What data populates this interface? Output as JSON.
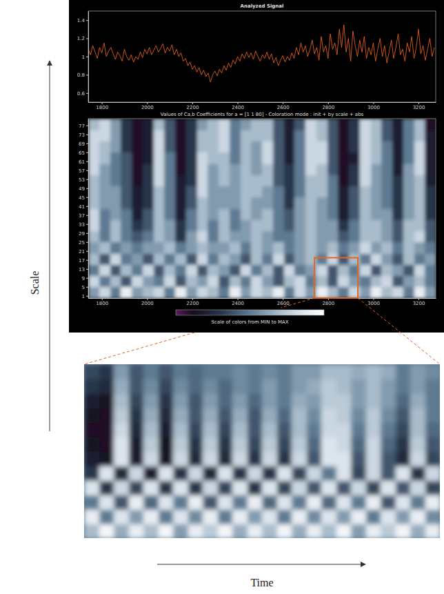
{
  "chart_data": [
    {
      "type": "line",
      "title": "Analyzed Signal",
      "color": "#ff6a1a",
      "x": [
        1740,
        1750,
        1760,
        1770,
        1780,
        1790,
        1800,
        1810,
        1820,
        1830,
        1840,
        1850,
        1860,
        1870,
        1880,
        1890,
        1900,
        1910,
        1920,
        1930,
        1940,
        1950,
        1960,
        1970,
        1980,
        1990,
        2000,
        2010,
        2020,
        2030,
        2040,
        2050,
        2060,
        2070,
        2080,
        2090,
        2100,
        2110,
        2120,
        2130,
        2140,
        2150,
        2160,
        2170,
        2180,
        2190,
        2200,
        2210,
        2220,
        2230,
        2240,
        2250,
        2260,
        2270,
        2280,
        2290,
        2300,
        2310,
        2320,
        2330,
        2340,
        2350,
        2360,
        2370,
        2380,
        2390,
        2400,
        2410,
        2420,
        2430,
        2440,
        2450,
        2460,
        2470,
        2480,
        2490,
        2500,
        2510,
        2520,
        2530,
        2540,
        2550,
        2560,
        2570,
        2580,
        2590,
        2600,
        2610,
        2620,
        2630,
        2640,
        2650,
        2660,
        2670,
        2680,
        2690,
        2700,
        2710,
        2720,
        2730,
        2740,
        2750,
        2760,
        2770,
        2780,
        2790,
        2800,
        2810,
        2820,
        2830,
        2840,
        2850,
        2860,
        2870,
        2880,
        2890,
        2900,
        2910,
        2920,
        2930,
        2940,
        2950,
        2960,
        2970,
        2980,
        2990,
        3000,
        3010,
        3020,
        3030,
        3040,
        3050,
        3060,
        3070,
        3080,
        3090,
        3100,
        3110,
        3120,
        3130,
        3140,
        3150,
        3160,
        3170,
        3180,
        3190,
        3200,
        3210,
        3220,
        3230,
        3240,
        3250,
        3260,
        3270
      ],
      "values": [
        1.08,
        1.02,
        1.12,
        1.05,
        0.98,
        1.1,
        1.04,
        1.15,
        1.0,
        1.06,
        1.1,
        1.03,
        0.97,
        1.05,
        1.01,
        0.95,
        1.08,
        1.0,
        0.96,
        1.02,
        0.94,
        1.0,
        0.97,
        1.05,
        0.99,
        1.08,
        1.03,
        1.1,
        1.02,
        1.07,
        1.12,
        1.05,
        1.09,
        1.14,
        1.04,
        1.1,
        1.06,
        1.13,
        1.02,
        1.08,
        1.0,
        1.04,
        0.95,
        0.98,
        0.9,
        0.94,
        0.86,
        0.9,
        0.83,
        0.88,
        0.8,
        0.85,
        0.78,
        0.82,
        0.72,
        0.8,
        0.84,
        0.79,
        0.86,
        0.82,
        0.9,
        0.85,
        0.93,
        0.88,
        0.96,
        0.92,
        1.0,
        0.95,
        1.03,
        0.98,
        1.05,
        0.99,
        1.04,
        0.97,
        1.06,
        1.0,
        0.95,
        1.02,
        0.98,
        1.05,
        0.97,
        1.03,
        0.93,
        0.99,
        0.9,
        0.96,
        1.01,
        0.94,
        1.0,
        0.96,
        1.04,
        0.98,
        1.1,
        1.02,
        1.15,
        1.05,
        1.12,
        1.0,
        1.08,
        1.18,
        1.03,
        1.1,
        0.96,
        1.22,
        1.05,
        1.12,
        0.98,
        1.25,
        1.08,
        1.15,
        1.02,
        1.3,
        1.1,
        1.35,
        1.05,
        1.2,
        0.95,
        1.28,
        1.12,
        1.0,
        1.18,
        1.05,
        1.22,
        0.98,
        1.1,
        1.02,
        1.15,
        0.95,
        1.08,
        1.2,
        1.0,
        1.12,
        0.93,
        1.05,
        1.18,
        0.98,
        1.1,
        1.25,
        1.02,
        1.08,
        0.95,
        1.15,
        1.05,
        1.22,
        0.98,
        1.1,
        1.3,
        1.03,
        1.12,
        0.96,
        1.08,
        1.2,
        1.0,
        1.1
      ],
      "xlim": [
        1740,
        3276
      ],
      "xticks": [
        1800,
        2000,
        2200,
        2400,
        2600,
        2800,
        3000,
        3200
      ],
      "ylim": [
        0.5,
        1.5
      ],
      "yticks": [
        0.6,
        0.8,
        1,
        1.2,
        1.4
      ]
    },
    {
      "type": "heatmap",
      "title": "Values of Ca,b Coefficients for a = [1 1 80] - Coloration mode : init + by scale + abs",
      "x_edges": [
        1740,
        1788,
        1836,
        1884,
        1932,
        1980,
        2028,
        2076,
        2124,
        2172,
        2220,
        2268,
        2316,
        2364,
        2412,
        2460,
        2508,
        2556,
        2604,
        2652,
        2700,
        2748,
        2796,
        2844,
        2892,
        2940,
        2988,
        3036,
        3084,
        3132,
        3180,
        3228,
        3276
      ],
      "y_edges": [
        0,
        5,
        10,
        15,
        20,
        25,
        30,
        35,
        40,
        45,
        50,
        55,
        60,
        65,
        70,
        75,
        80
      ],
      "values": [
        [
          0.6,
          0.8,
          0.5,
          0.9,
          0.6,
          0.7,
          0.8,
          0.5,
          0.9,
          0.6,
          0.8,
          0.7,
          0.5,
          0.9,
          0.6,
          0.8,
          0.7,
          0.9,
          0.5,
          0.8,
          0.6,
          0.9,
          0.7,
          0.5,
          0.8,
          0.6,
          0.9,
          0.7,
          0.8,
          0.5,
          0.9,
          0.6
        ],
        [
          0.8,
          0.5,
          0.7,
          0.4,
          0.8,
          0.6,
          0.5,
          0.8,
          0.4,
          0.7,
          0.6,
          0.8,
          0.4,
          0.7,
          0.5,
          0.8,
          0.6,
          0.4,
          0.7,
          0.8,
          0.5,
          0.7,
          0.4,
          0.8,
          0.6,
          0.5,
          0.7,
          0.8,
          0.4,
          0.6,
          0.7,
          0.5
        ],
        [
          0.5,
          0.8,
          0.4,
          0.7,
          0.5,
          0.8,
          0.4,
          0.7,
          0.5,
          0.8,
          0.4,
          0.7,
          0.6,
          0.4,
          0.8,
          0.5,
          0.7,
          0.4,
          0.8,
          0.5,
          0.6,
          0.8,
          0.4,
          0.7,
          0.5,
          0.8,
          0.4,
          0.7,
          0.6,
          0.4,
          0.8,
          0.5
        ],
        [
          0.7,
          0.4,
          0.8,
          0.5,
          0.6,
          0.4,
          0.7,
          0.5,
          0.7,
          0.4,
          0.8,
          0.5,
          0.7,
          0.6,
          0.4,
          0.7,
          0.5,
          0.8,
          0.4,
          0.6,
          0.7,
          0.5,
          0.8,
          0.4,
          0.7,
          0.5,
          0.8,
          0.6,
          0.4,
          0.7,
          0.5,
          0.6
        ],
        [
          0.6,
          0.7,
          0.5,
          0.6,
          0.5,
          0.6,
          0.6,
          0.7,
          0.5,
          0.6,
          0.7,
          0.6,
          0.6,
          0.7,
          0.5,
          0.7,
          0.6,
          0.7,
          0.5,
          0.6,
          0.7,
          0.6,
          0.7,
          0.5,
          0.6,
          0.8,
          0.6,
          0.7,
          0.5,
          0.7,
          0.6,
          0.5
        ],
        [
          0.7,
          0.5,
          0.7,
          0.5,
          0.4,
          0.5,
          0.7,
          0.6,
          0.3,
          0.6,
          0.8,
          0.5,
          0.7,
          0.6,
          0.6,
          0.7,
          0.6,
          0.5,
          0.5,
          0.6,
          0.7,
          0.6,
          0.6,
          0.4,
          0.5,
          0.7,
          0.7,
          0.6,
          0.4,
          0.7,
          0.8,
          0.4
        ],
        [
          0.8,
          0.5,
          0.7,
          0.5,
          0.3,
          0.4,
          0.7,
          0.6,
          0.3,
          0.5,
          0.7,
          0.5,
          0.7,
          0.5,
          0.6,
          0.7,
          0.7,
          0.5,
          0.4,
          0.6,
          0.7,
          0.6,
          0.6,
          0.3,
          0.5,
          0.7,
          0.7,
          0.6,
          0.4,
          0.7,
          0.7,
          0.4
        ],
        [
          0.8,
          0.5,
          0.6,
          0.5,
          0.2,
          0.4,
          0.7,
          0.5,
          0.2,
          0.5,
          0.7,
          0.6,
          0.7,
          0.5,
          0.7,
          0.6,
          0.7,
          0.5,
          0.4,
          0.6,
          0.7,
          0.6,
          0.5,
          0.2,
          0.4,
          0.7,
          0.6,
          0.6,
          0.3,
          0.6,
          0.7,
          0.3
        ],
        [
          0.7,
          0.6,
          0.6,
          0.4,
          0.2,
          0.3,
          0.7,
          0.5,
          0.2,
          0.4,
          0.7,
          0.6,
          0.6,
          0.6,
          0.7,
          0.6,
          0.6,
          0.5,
          0.3,
          0.6,
          0.7,
          0.6,
          0.5,
          0.2,
          0.4,
          0.7,
          0.6,
          0.5,
          0.3,
          0.6,
          0.7,
          0.3
        ],
        [
          0.7,
          0.6,
          0.6,
          0.4,
          0.2,
          0.3,
          0.7,
          0.5,
          0.2,
          0.4,
          0.8,
          0.6,
          0.6,
          0.6,
          0.7,
          0.7,
          0.6,
          0.5,
          0.3,
          0.5,
          0.7,
          0.7,
          0.5,
          0.2,
          0.4,
          0.7,
          0.6,
          0.5,
          0.3,
          0.6,
          0.7,
          0.3
        ],
        [
          0.7,
          0.6,
          0.5,
          0.4,
          0.1,
          0.3,
          0.8,
          0.5,
          0.2,
          0.3,
          0.8,
          0.6,
          0.7,
          0.6,
          0.7,
          0.7,
          0.7,
          0.4,
          0.3,
          0.5,
          0.7,
          0.7,
          0.5,
          0.1,
          0.3,
          0.8,
          0.6,
          0.5,
          0.3,
          0.6,
          0.7,
          0.2
        ],
        [
          0.8,
          0.6,
          0.5,
          0.4,
          0.1,
          0.3,
          0.8,
          0.5,
          0.1,
          0.3,
          0.8,
          0.6,
          0.7,
          0.6,
          0.7,
          0.6,
          0.7,
          0.4,
          0.3,
          0.5,
          0.8,
          0.7,
          0.4,
          0.1,
          0.3,
          0.8,
          0.6,
          0.5,
          0.2,
          0.6,
          0.8,
          0.2
        ],
        [
          0.8,
          0.7,
          0.5,
          0.4,
          0.1,
          0.2,
          0.8,
          0.5,
          0.1,
          0.3,
          0.8,
          0.7,
          0.7,
          0.5,
          0.7,
          0.6,
          0.8,
          0.4,
          0.2,
          0.5,
          0.8,
          0.8,
          0.4,
          0.1,
          0.2,
          0.8,
          0.7,
          0.5,
          0.2,
          0.5,
          0.8,
          0.2
        ],
        [
          0.8,
          0.7,
          0.6,
          0.3,
          0.1,
          0.2,
          0.8,
          0.4,
          0.1,
          0.3,
          0.7,
          0.7,
          0.8,
          0.5,
          0.7,
          0.6,
          0.8,
          0.4,
          0.2,
          0.5,
          0.8,
          0.8,
          0.4,
          0.1,
          0.3,
          0.8,
          0.7,
          0.5,
          0.2,
          0.5,
          0.8,
          0.2
        ],
        [
          0.8,
          0.8,
          0.6,
          0.3,
          0.1,
          0.2,
          0.8,
          0.4,
          0.1,
          0.3,
          0.7,
          0.7,
          0.8,
          0.5,
          0.7,
          0.7,
          0.7,
          0.4,
          0.2,
          0.5,
          0.8,
          0.7,
          0.4,
          0.1,
          0.3,
          0.8,
          0.7,
          0.4,
          0.2,
          0.5,
          0.7,
          0.2
        ],
        [
          0.7,
          0.8,
          0.6,
          0.3,
          0.1,
          0.2,
          0.7,
          0.4,
          0.1,
          0.3,
          0.6,
          0.7,
          0.8,
          0.5,
          0.6,
          0.7,
          0.7,
          0.4,
          0.2,
          0.4,
          0.8,
          0.7,
          0.4,
          0.1,
          0.3,
          0.8,
          0.7,
          0.4,
          0.2,
          0.5,
          0.7,
          0.1
        ]
      ],
      "xlim": [
        1740,
        3276
      ],
      "xticks": [
        1800,
        2000,
        2200,
        2400,
        2600,
        2800,
        3000,
        3200
      ],
      "ylim": [
        0,
        80
      ],
      "yticks": [
        1,
        5,
        9,
        13,
        17,
        21,
        25,
        29,
        33,
        37,
        41,
        45,
        49,
        53,
        57,
        61,
        65,
        69,
        73,
        77
      ],
      "colorbar": {
        "label": "Scale of colors from MIN to MAX",
        "range": [
          0,
          1
        ]
      }
    },
    {
      "type": "heatmap",
      "xlabel": "Time",
      "ylabel": "Scale",
      "color": "#e8641e",
      "tick_labels": false,
      "x_edges": [
        2740,
        2748,
        2756,
        2764,
        2772,
        2780,
        2788,
        2796,
        2804,
        2812,
        2820,
        2828,
        2836,
        2844,
        2852,
        2860,
        2868,
        2876,
        2884,
        2892,
        2900,
        2908,
        2916,
        2924,
        2932
      ],
      "y_edges": [
        0,
        1.5,
        3,
        4.5,
        6,
        7.5,
        9,
        10.5,
        12,
        13.5,
        15,
        16.5,
        18
      ],
      "values": [
        [
          0.7,
          0.95,
          0.65,
          0.9,
          0.7,
          0.95,
          0.6,
          0.9,
          0.75,
          0.95,
          0.65,
          0.9,
          0.7,
          0.95,
          0.65,
          0.9,
          0.7,
          0.95,
          0.6,
          0.9,
          0.75,
          0.95,
          0.65,
          0.9
        ],
        [
          0.9,
          0.5,
          0.85,
          0.6,
          0.9,
          0.5,
          0.85,
          0.55,
          0.9,
          0.5,
          0.9,
          0.6,
          0.85,
          0.5,
          0.9,
          0.55,
          0.85,
          0.6,
          0.9,
          0.5,
          0.85,
          0.6,
          0.9,
          0.55
        ],
        [
          0.5,
          0.85,
          0.4,
          0.9,
          0.45,
          0.85,
          0.5,
          0.9,
          0.4,
          0.85,
          0.5,
          0.9,
          0.45,
          0.85,
          0.5,
          0.9,
          0.45,
          0.85,
          0.5,
          0.9,
          0.4,
          0.85,
          0.5,
          0.9
        ],
        [
          0.85,
          0.3,
          0.8,
          0.35,
          0.85,
          0.3,
          0.85,
          0.3,
          0.8,
          0.35,
          0.85,
          0.3,
          0.85,
          0.35,
          0.8,
          0.4,
          0.85,
          0.4,
          0.8,
          0.35,
          0.85,
          0.4,
          0.8,
          0.35
        ],
        [
          0.3,
          0.85,
          0.25,
          0.8,
          0.2,
          0.85,
          0.3,
          0.8,
          0.25,
          0.85,
          0.3,
          0.8,
          0.3,
          0.85,
          0.35,
          0.8,
          0.5,
          0.85,
          0.35,
          0.8,
          0.4,
          0.85,
          0.3,
          0.8
        ],
        [
          0.2,
          0.15,
          0.85,
          0.2,
          0.8,
          0.15,
          0.8,
          0.25,
          0.8,
          0.25,
          0.8,
          0.3,
          0.8,
          0.3,
          0.8,
          0.4,
          0.85,
          0.85,
          0.4,
          0.8,
          0.4,
          0.25,
          0.8,
          0.35
        ],
        [
          0.15,
          0.1,
          0.85,
          0.2,
          0.75,
          0.15,
          0.75,
          0.3,
          0.75,
          0.3,
          0.75,
          0.35,
          0.75,
          0.35,
          0.75,
          0.45,
          0.85,
          0.8,
          0.45,
          0.8,
          0.45,
          0.3,
          0.75,
          0.4
        ],
        [
          0.1,
          0.1,
          0.8,
          0.25,
          0.7,
          0.2,
          0.7,
          0.35,
          0.7,
          0.35,
          0.7,
          0.4,
          0.7,
          0.4,
          0.7,
          0.5,
          0.8,
          0.8,
          0.5,
          0.75,
          0.5,
          0.35,
          0.7,
          0.45
        ],
        [
          0.15,
          0.1,
          0.75,
          0.3,
          0.65,
          0.25,
          0.65,
          0.4,
          0.65,
          0.4,
          0.65,
          0.4,
          0.65,
          0.45,
          0.7,
          0.55,
          0.8,
          0.75,
          0.55,
          0.75,
          0.55,
          0.4,
          0.7,
          0.5
        ],
        [
          0.2,
          0.15,
          0.7,
          0.35,
          0.6,
          0.3,
          0.6,
          0.4,
          0.6,
          0.45,
          0.6,
          0.45,
          0.6,
          0.5,
          0.65,
          0.6,
          0.75,
          0.75,
          0.6,
          0.7,
          0.6,
          0.45,
          0.65,
          0.5
        ],
        [
          0.3,
          0.25,
          0.65,
          0.4,
          0.55,
          0.35,
          0.55,
          0.45,
          0.55,
          0.45,
          0.55,
          0.5,
          0.6,
          0.5,
          0.6,
          0.65,
          0.75,
          0.7,
          0.6,
          0.7,
          0.6,
          0.5,
          0.6,
          0.5
        ],
        [
          0.35,
          0.3,
          0.6,
          0.4,
          0.5,
          0.4,
          0.5,
          0.45,
          0.5,
          0.5,
          0.55,
          0.5,
          0.55,
          0.5,
          0.6,
          0.6,
          0.7,
          0.7,
          0.65,
          0.7,
          0.65,
          0.5,
          0.6,
          0.55
        ]
      ],
      "xlim": [
        2740,
        2932
      ],
      "ylim": [
        0,
        18
      ]
    }
  ]
}
